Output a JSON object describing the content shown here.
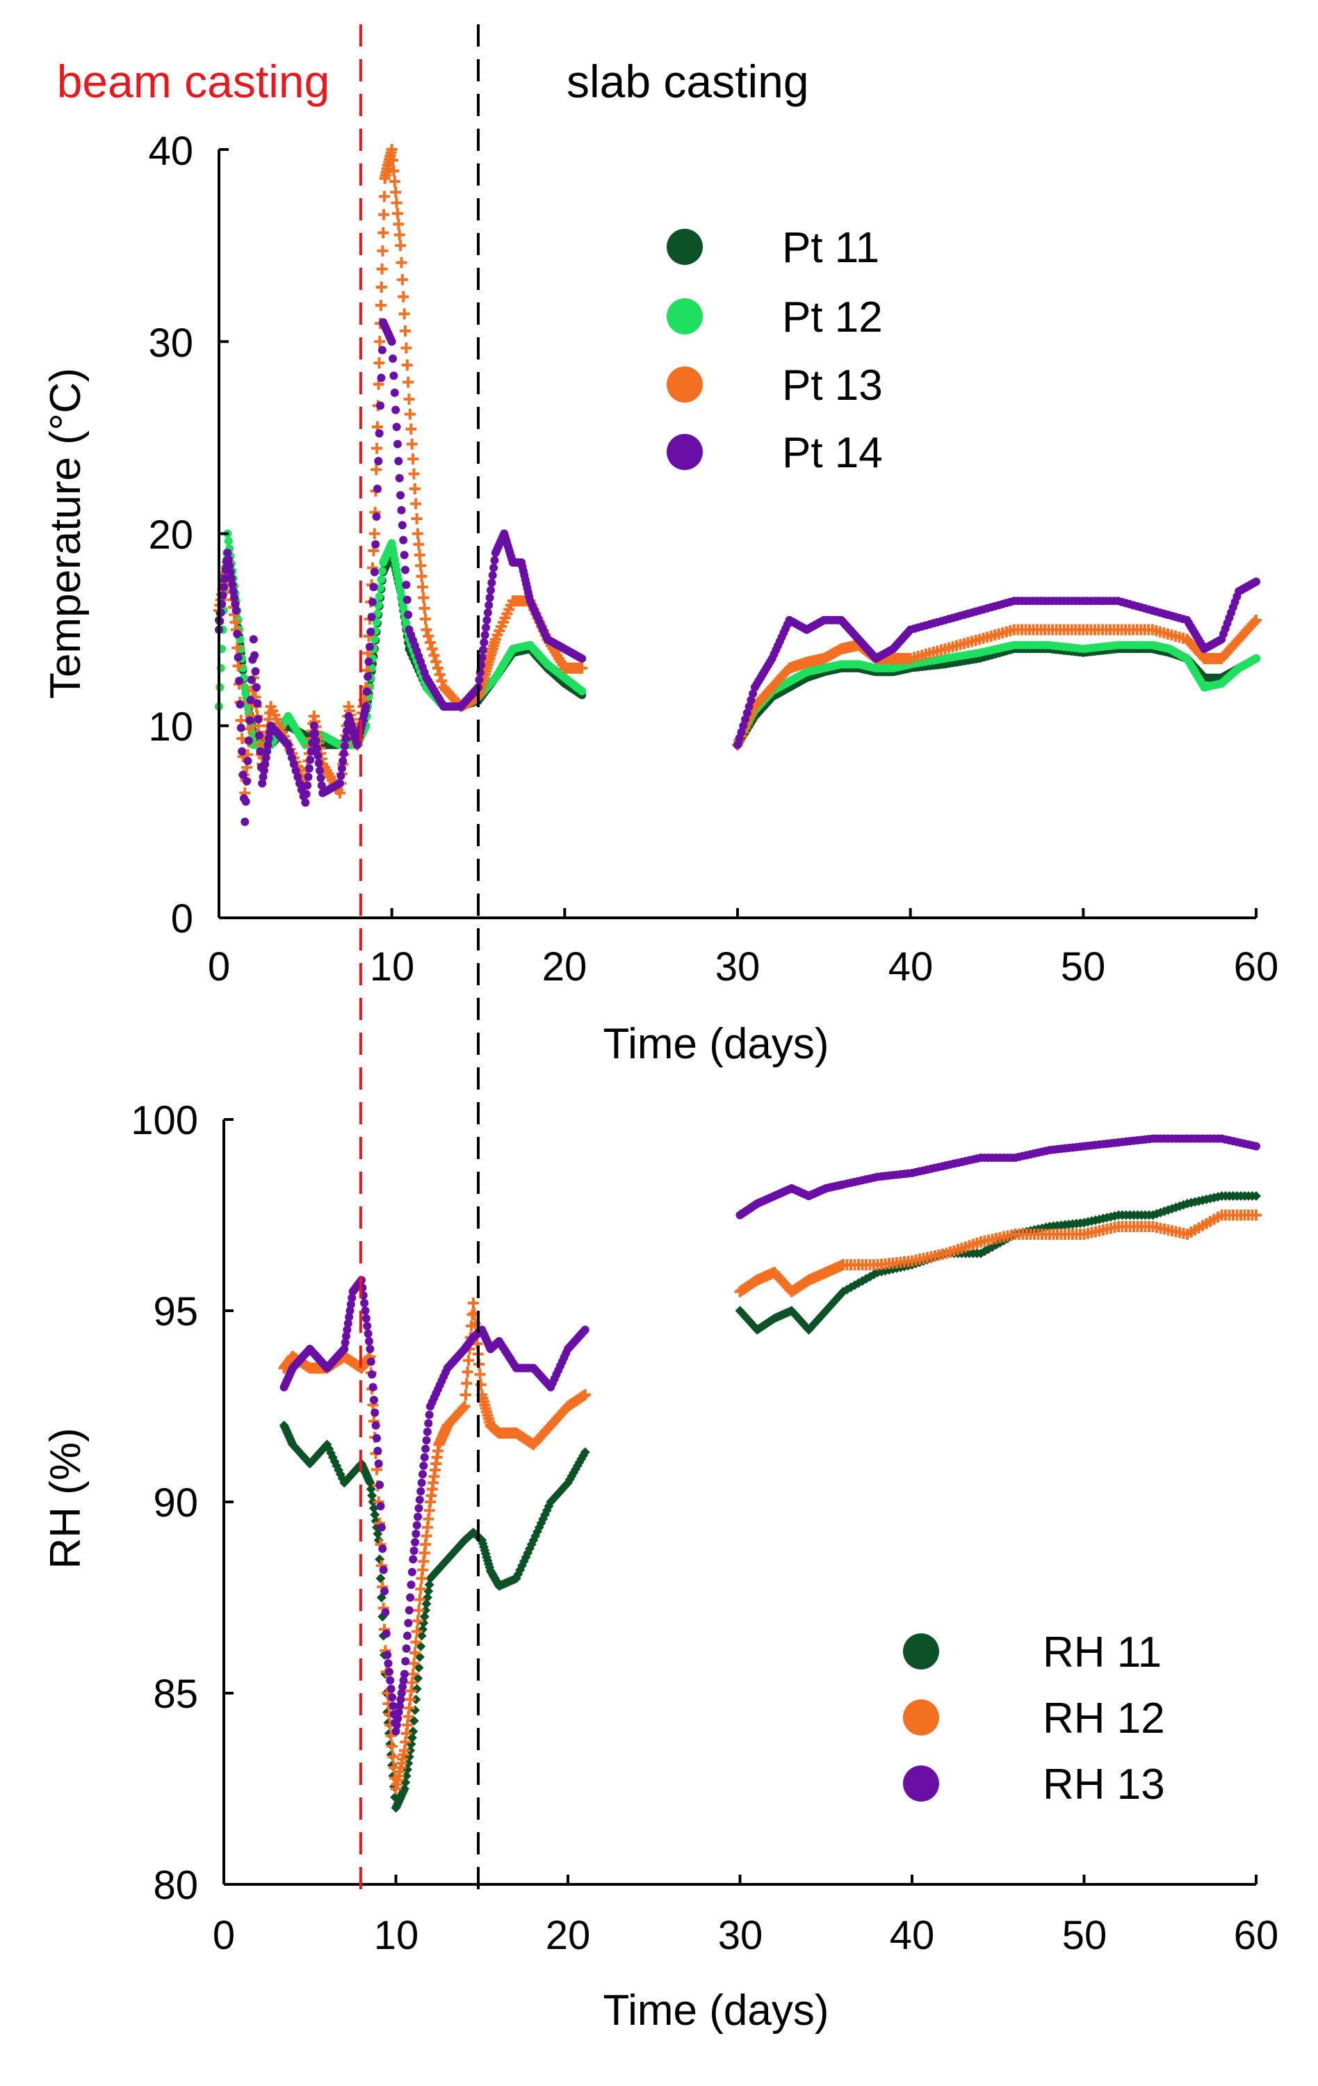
{
  "events": [
    {
      "label": "beam casting",
      "x": 8.2,
      "color": "#e8191e"
    },
    {
      "label": "slab casting",
      "x": 15.0,
      "color": "#000000"
    }
  ],
  "chart_data": [
    {
      "type": "scatter",
      "title": "",
      "xlabel": "Time (days)",
      "ylabel": "Temperature (°C)",
      "xlim": [
        0,
        60
      ],
      "ylim": [
        0,
        40
      ],
      "xticks": [
        "0",
        "10",
        "20",
        "30",
        "40",
        "50",
        "60"
      ],
      "yticks": [
        "0",
        "10",
        "20",
        "30",
        "40"
      ],
      "legend_position": "top-center",
      "series": [
        {
          "name": "Pt 11",
          "color": "#0b5226",
          "marker": "dot",
          "x": [
            0.0,
            0.5,
            1.0,
            1.5,
            2.0,
            3.0,
            4.0,
            5.0,
            6.0,
            7.0,
            8.0,
            8.5,
            9.0,
            9.5,
            10.0,
            10.5,
            11.0,
            12.0,
            13.0,
            14.0,
            15.0,
            16.0,
            17.0,
            18.0,
            19.0,
            20.0,
            21.0,
            30.0,
            31.0,
            32.0,
            33.0,
            34.0,
            35.0,
            36.0,
            37.0,
            38.0,
            39.0,
            40.0,
            42.0,
            44.0,
            46.0,
            48.0,
            50.0,
            52.0,
            54.0,
            55.0,
            56.0,
            57.0,
            58.0,
            59.0,
            60.0
          ],
          "y": [
            15.5,
            19.0,
            16.0,
            12.0,
            9.5,
            9.0,
            10.0,
            9.5,
            9.0,
            9.0,
            9.5,
            10.5,
            14.0,
            18.0,
            19.0,
            17.0,
            14.0,
            12.0,
            11.0,
            11.0,
            11.3,
            12.5,
            13.8,
            14.0,
            13.0,
            12.2,
            11.6,
            9.0,
            10.5,
            11.5,
            12.0,
            12.5,
            12.8,
            13.0,
            13.0,
            12.8,
            12.8,
            13.0,
            13.2,
            13.5,
            14.0,
            14.0,
            13.8,
            14.0,
            14.0,
            13.8,
            13.5,
            12.5,
            12.5,
            13.0,
            13.5
          ]
        },
        {
          "name": "Pt 12",
          "color": "#1ee05e",
          "marker": "dot",
          "x": [
            0.0,
            0.5,
            1.0,
            1.5,
            2.0,
            3.0,
            4.0,
            5.0,
            6.0,
            7.0,
            8.0,
            8.5,
            9.0,
            9.5,
            10.0,
            10.5,
            11.0,
            12.0,
            13.0,
            14.0,
            15.0,
            16.0,
            17.0,
            18.0,
            19.0,
            20.0,
            21.0,
            30.0,
            31.0,
            32.0,
            33.0,
            34.0,
            35.0,
            36.0,
            37.0,
            38.0,
            39.0,
            40.0,
            42.0,
            44.0,
            46.0,
            48.0,
            50.0,
            52.0,
            54.0,
            55.0,
            56.0,
            57.0,
            58.0,
            59.0,
            60.0
          ],
          "y": [
            11.0,
            20.0,
            16.5,
            12.0,
            9.0,
            9.0,
            10.5,
            9.0,
            9.5,
            9.0,
            9.0,
            10.0,
            14.5,
            18.5,
            19.5,
            17.0,
            14.5,
            12.0,
            11.0,
            11.0,
            11.5,
            12.5,
            14.0,
            14.2,
            13.2,
            12.5,
            11.8,
            9.2,
            10.8,
            11.8,
            12.3,
            12.8,
            13.0,
            13.2,
            13.2,
            13.0,
            13.0,
            13.2,
            13.5,
            13.8,
            14.2,
            14.2,
            14.0,
            14.2,
            14.2,
            14.0,
            13.5,
            12.0,
            12.2,
            13.0,
            13.5
          ]
        },
        {
          "name": "Pt 13",
          "color": "#f36f21",
          "marker": "cross",
          "x": [
            0.0,
            0.5,
            1.0,
            1.5,
            2.0,
            2.5,
            3.0,
            4.0,
            5.0,
            5.5,
            6.0,
            7.0,
            7.5,
            8.0,
            8.5,
            9.0,
            9.3,
            9.6,
            10.0,
            10.5,
            11.0,
            11.5,
            12.0,
            13.0,
            14.0,
            15.0,
            15.5,
            16.0,
            17.0,
            18.0,
            19.0,
            20.0,
            21.0,
            30.0,
            31.0,
            32.0,
            33.0,
            34.0,
            35.0,
            36.0,
            37.0,
            38.0,
            39.0,
            40.0,
            42.0,
            44.0,
            46.0,
            48.0,
            50.0,
            52.0,
            54.0,
            56.0,
            57.0,
            58.0,
            59.0,
            60.0
          ],
          "y": [
            16.0,
            18.5,
            15.0,
            6.5,
            12.5,
            8.0,
            11.0,
            9.0,
            7.0,
            10.5,
            8.0,
            6.5,
            11.0,
            9.0,
            12.0,
            20.0,
            30.0,
            38.5,
            40.0,
            35.0,
            27.0,
            20.0,
            15.0,
            12.0,
            11.0,
            11.5,
            13.0,
            14.5,
            16.5,
            16.5,
            14.5,
            13.0,
            13.0,
            9.0,
            11.0,
            12.0,
            13.0,
            13.3,
            13.5,
            14.0,
            14.2,
            13.5,
            13.5,
            13.5,
            14.0,
            14.5,
            15.0,
            15.0,
            15.0,
            15.0,
            15.0,
            14.5,
            13.5,
            13.5,
            14.5,
            15.5
          ]
        },
        {
          "name": "Pt 14",
          "color": "#6a0fa5",
          "marker": "dot",
          "x": [
            0.0,
            0.5,
            1.0,
            1.5,
            2.0,
            2.5,
            3.0,
            4.0,
            5.0,
            5.5,
            6.0,
            7.0,
            7.5,
            8.0,
            8.5,
            9.0,
            9.5,
            10.0,
            10.5,
            11.0,
            12.0,
            13.0,
            14.0,
            15.0,
            15.5,
            16.0,
            16.5,
            17.0,
            17.5,
            18.0,
            19.0,
            20.0,
            21.0,
            30.0,
            31.0,
            32.0,
            33.0,
            34.0,
            35.0,
            36.0,
            37.0,
            38.0,
            39.0,
            40.0,
            42.0,
            44.0,
            46.0,
            48.0,
            50.0,
            52.0,
            54.0,
            56.0,
            57.0,
            58.0,
            59.0,
            60.0
          ],
          "y": [
            15.0,
            19.0,
            16.0,
            5.0,
            14.5,
            7.0,
            10.0,
            9.0,
            6.0,
            10.0,
            6.5,
            7.0,
            10.5,
            9.0,
            11.0,
            18.0,
            31.0,
            30.0,
            22.0,
            15.0,
            12.5,
            11.0,
            11.0,
            12.0,
            15.5,
            19.0,
            20.0,
            18.5,
            18.5,
            16.5,
            14.5,
            14.0,
            13.5,
            9.0,
            12.0,
            13.5,
            15.5,
            15.0,
            15.5,
            15.5,
            14.5,
            13.5,
            14.0,
            15.0,
            15.5,
            16.0,
            16.5,
            16.5,
            16.5,
            16.5,
            16.0,
            15.5,
            14.0,
            14.5,
            17.0,
            17.5
          ]
        }
      ]
    },
    {
      "type": "scatter",
      "title": "",
      "xlabel": "Time (days)",
      "ylabel": "RH (%)",
      "xlim": [
        0,
        60
      ],
      "ylim": [
        80,
        100
      ],
      "xticks": [
        "0",
        "10",
        "20",
        "30",
        "40",
        "50",
        "60"
      ],
      "yticks": [
        "80",
        "85",
        "90",
        "95",
        "100"
      ],
      "legend_position": "bottom-right",
      "series": [
        {
          "name": "RH 11",
          "color": "#0b5226",
          "marker": "diamond",
          "x": [
            3.5,
            4.0,
            5.0,
            6.0,
            7.0,
            8.0,
            8.5,
            9.0,
            9.5,
            10.0,
            10.5,
            11.0,
            11.5,
            12.0,
            13.0,
            14.0,
            14.5,
            15.0,
            15.5,
            16.0,
            17.0,
            18.0,
            19.0,
            20.0,
            21.0,
            30.0,
            31.0,
            32.0,
            33.0,
            34.0,
            35.0,
            36.0,
            38.0,
            40.0,
            42.0,
            44.0,
            46.0,
            48.0,
            50.0,
            52.0,
            54.0,
            56.0,
            58.0,
            60.0
          ],
          "y": [
            92.0,
            91.5,
            91.0,
            91.5,
            90.5,
            91.0,
            90.5,
            89.0,
            84.5,
            82.0,
            82.5,
            84.0,
            86.5,
            88.0,
            88.5,
            89.0,
            89.2,
            89.0,
            88.2,
            87.8,
            88.0,
            89.0,
            90.0,
            90.5,
            91.3,
            95.0,
            94.5,
            94.8,
            95.0,
            94.5,
            95.0,
            95.5,
            96.0,
            96.2,
            96.5,
            96.5,
            97.0,
            97.2,
            97.3,
            97.5,
            97.5,
            97.8,
            98.0,
            98.0
          ]
        },
        {
          "name": "RH 12",
          "color": "#f36f21",
          "marker": "cross",
          "x": [
            3.5,
            4.0,
            5.0,
            6.0,
            7.0,
            8.0,
            8.5,
            9.0,
            9.5,
            10.0,
            10.5,
            11.0,
            11.5,
            12.0,
            12.5,
            13.0,
            14.0,
            14.5,
            15.0,
            15.5,
            16.0,
            17.0,
            18.0,
            19.0,
            20.0,
            21.0,
            30.0,
            31.0,
            32.0,
            33.0,
            34.0,
            35.0,
            36.0,
            38.0,
            40.0,
            42.0,
            44.0,
            46.0,
            48.0,
            50.0,
            52.0,
            54.0,
            56.0,
            58.0,
            60.0
          ],
          "y": [
            93.5,
            93.8,
            93.5,
            93.5,
            93.8,
            93.5,
            93.8,
            90.0,
            85.0,
            82.5,
            83.5,
            85.5,
            88.0,
            90.0,
            91.5,
            92.0,
            92.5,
            95.2,
            92.8,
            92.0,
            91.8,
            91.8,
            91.5,
            92.0,
            92.5,
            92.8,
            95.5,
            95.8,
            96.0,
            95.5,
            95.8,
            96.0,
            96.2,
            96.2,
            96.3,
            96.5,
            96.8,
            97.0,
            97.0,
            97.0,
            97.2,
            97.2,
            97.0,
            97.5,
            97.5
          ]
        },
        {
          "name": "RH 13",
          "color": "#6a0fa5",
          "marker": "dot",
          "x": [
            3.5,
            4.0,
            5.0,
            6.0,
            7.0,
            7.5,
            8.0,
            8.5,
            9.0,
            9.5,
            10.0,
            10.5,
            11.0,
            11.5,
            12.0,
            13.0,
            14.0,
            14.5,
            15.0,
            15.5,
            16.0,
            17.0,
            18.0,
            19.0,
            20.0,
            21.0,
            30.0,
            31.0,
            32.0,
            33.0,
            34.0,
            35.0,
            36.0,
            38.0,
            40.0,
            42.0,
            44.0,
            46.0,
            48.0,
            50.0,
            52.0,
            54.0,
            56.0,
            58.0,
            60.0
          ],
          "y": [
            93.0,
            93.5,
            94.0,
            93.5,
            94.0,
            95.5,
            95.8,
            94.0,
            91.0,
            86.0,
            84.0,
            85.5,
            88.5,
            90.5,
            92.5,
            93.5,
            94.0,
            94.3,
            94.5,
            94.0,
            94.2,
            93.5,
            93.5,
            93.0,
            94.0,
            94.5,
            97.5,
            97.8,
            98.0,
            98.2,
            98.0,
            98.2,
            98.3,
            98.5,
            98.6,
            98.8,
            99.0,
            99.0,
            99.2,
            99.3,
            99.4,
            99.5,
            99.5,
            99.5,
            99.3
          ]
        }
      ]
    }
  ]
}
